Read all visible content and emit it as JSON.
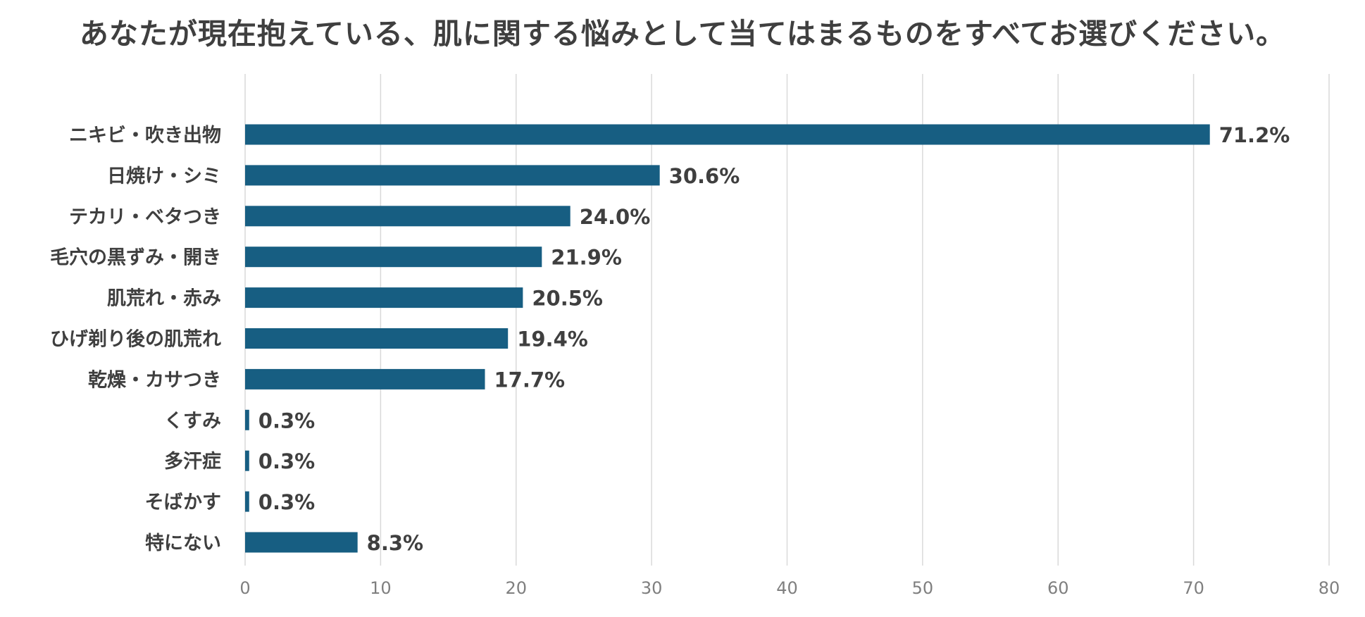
{
  "chart_data": {
    "type": "bar",
    "orientation": "horizontal",
    "title": "あなたが現在抱えている、肌に関する悩みとして当てはまるものをすべてお選びください。",
    "categories": [
      "ニキビ・吹き出物",
      "日焼け・シミ",
      "テカリ・ベタつき",
      "毛穴の黒ずみ・開き",
      "肌荒れ・赤み",
      "ひげ剃り後の肌荒れ",
      "乾燥・カサつき",
      "くすみ",
      "多汗症",
      "そばかす",
      "特にない"
    ],
    "values": [
      71.2,
      30.6,
      24.0,
      21.9,
      20.5,
      19.4,
      17.7,
      0.3,
      0.3,
      0.3,
      8.3
    ],
    "data_labels": [
      "71.2%",
      "30.6%",
      "24.0%",
      "21.9%",
      "20.5%",
      "19.4%",
      "17.7%",
      "0.3%",
      "0.3%",
      "0.3%",
      "8.3%"
    ],
    "xlim": [
      0,
      80
    ],
    "x_ticks": [
      "0",
      "10",
      "20",
      "30",
      "40",
      "50",
      "60",
      "70",
      "80"
    ],
    "grid": true,
    "legend": "none",
    "colors": {
      "bar": "#175e82",
      "text": "#3f3f3f",
      "tick": "#7f7f7f",
      "grid": "#d9d9d9"
    }
  }
}
